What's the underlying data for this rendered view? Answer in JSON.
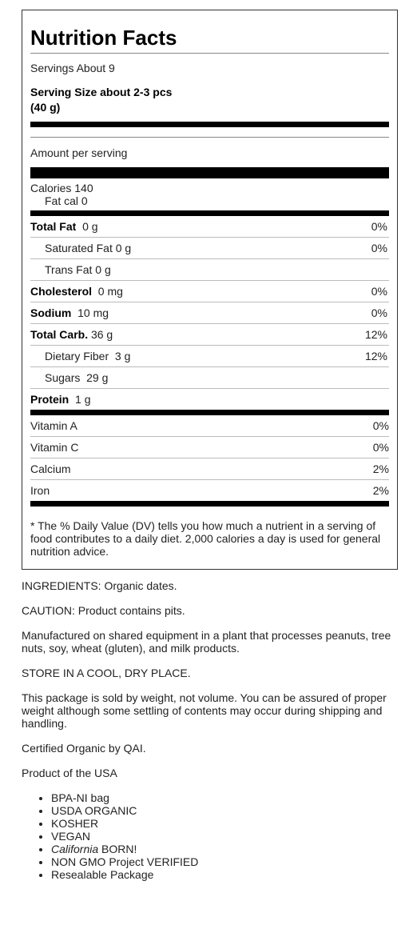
{
  "label": {
    "title": "Nutrition Facts",
    "servings": "Servings About 9",
    "serving_size": "Serving Size about 2-3 pcs (40 g)",
    "amount_per_serving": "Amount per serving",
    "calories": "Calories 140",
    "fat_cal": "Fat cal 0",
    "nutrients": [
      {
        "name": "Total Fat",
        "amount": "0 g",
        "dv": "0%"
      },
      {
        "name": "Saturated Fat 0 g",
        "dv": "0%"
      },
      {
        "name": "Trans Fat 0 g",
        "dv": ""
      },
      {
        "name": "Cholesterol",
        "amount": "0 mg",
        "dv": "0%"
      },
      {
        "name": "Sodium",
        "amount": "10 mg",
        "dv": "0%"
      },
      {
        "name": "Total Carb.",
        "amount": "36 g",
        "dv": "12%"
      },
      {
        "name": "Dietary Fiber",
        "amount": "3 g",
        "dv": "12%"
      },
      {
        "name": "Sugars",
        "amount": "29 g",
        "dv": ""
      },
      {
        "name": "Protein",
        "amount": "1 g",
        "dv": ""
      }
    ],
    "vitamins": [
      {
        "name": "Vitamin A",
        "dv": "0%"
      },
      {
        "name": "Vitamin C",
        "dv": "0%"
      },
      {
        "name": "Calcium",
        "dv": "2%"
      },
      {
        "name": "Iron",
        "dv": "2%"
      }
    ],
    "footnote": "* The % Daily Value (DV) tells you how much a nutrient in a serving of food contributes to a daily diet. 2,000 calories a day is used for general nutrition advice."
  },
  "info": {
    "ingredients": "INGREDIENTS: Organic dates.",
    "caution": "CAUTION: Product contains pits.",
    "manufactured": "Manufactured on shared equipment in a plant that processes peanuts, tree nuts, soy, wheat (gluten), and milk products.",
    "store": "STORE IN A COOL, DRY PLACE.",
    "weight": "This package is sold by weight, not volume. You can be assured of proper weight although some settling of contents may occur during shipping and handling.",
    "certified": "Certified Organic by QAI.",
    "product_of": "Product of the USA",
    "bullets": [
      "BPA-NI bag",
      "USDA ORGANIC",
      "KOSHER",
      "VEGAN",
      "BORN!",
      "NON GMO Project VERIFIED",
      "Resealable Package"
    ],
    "bullet_california": "California"
  }
}
